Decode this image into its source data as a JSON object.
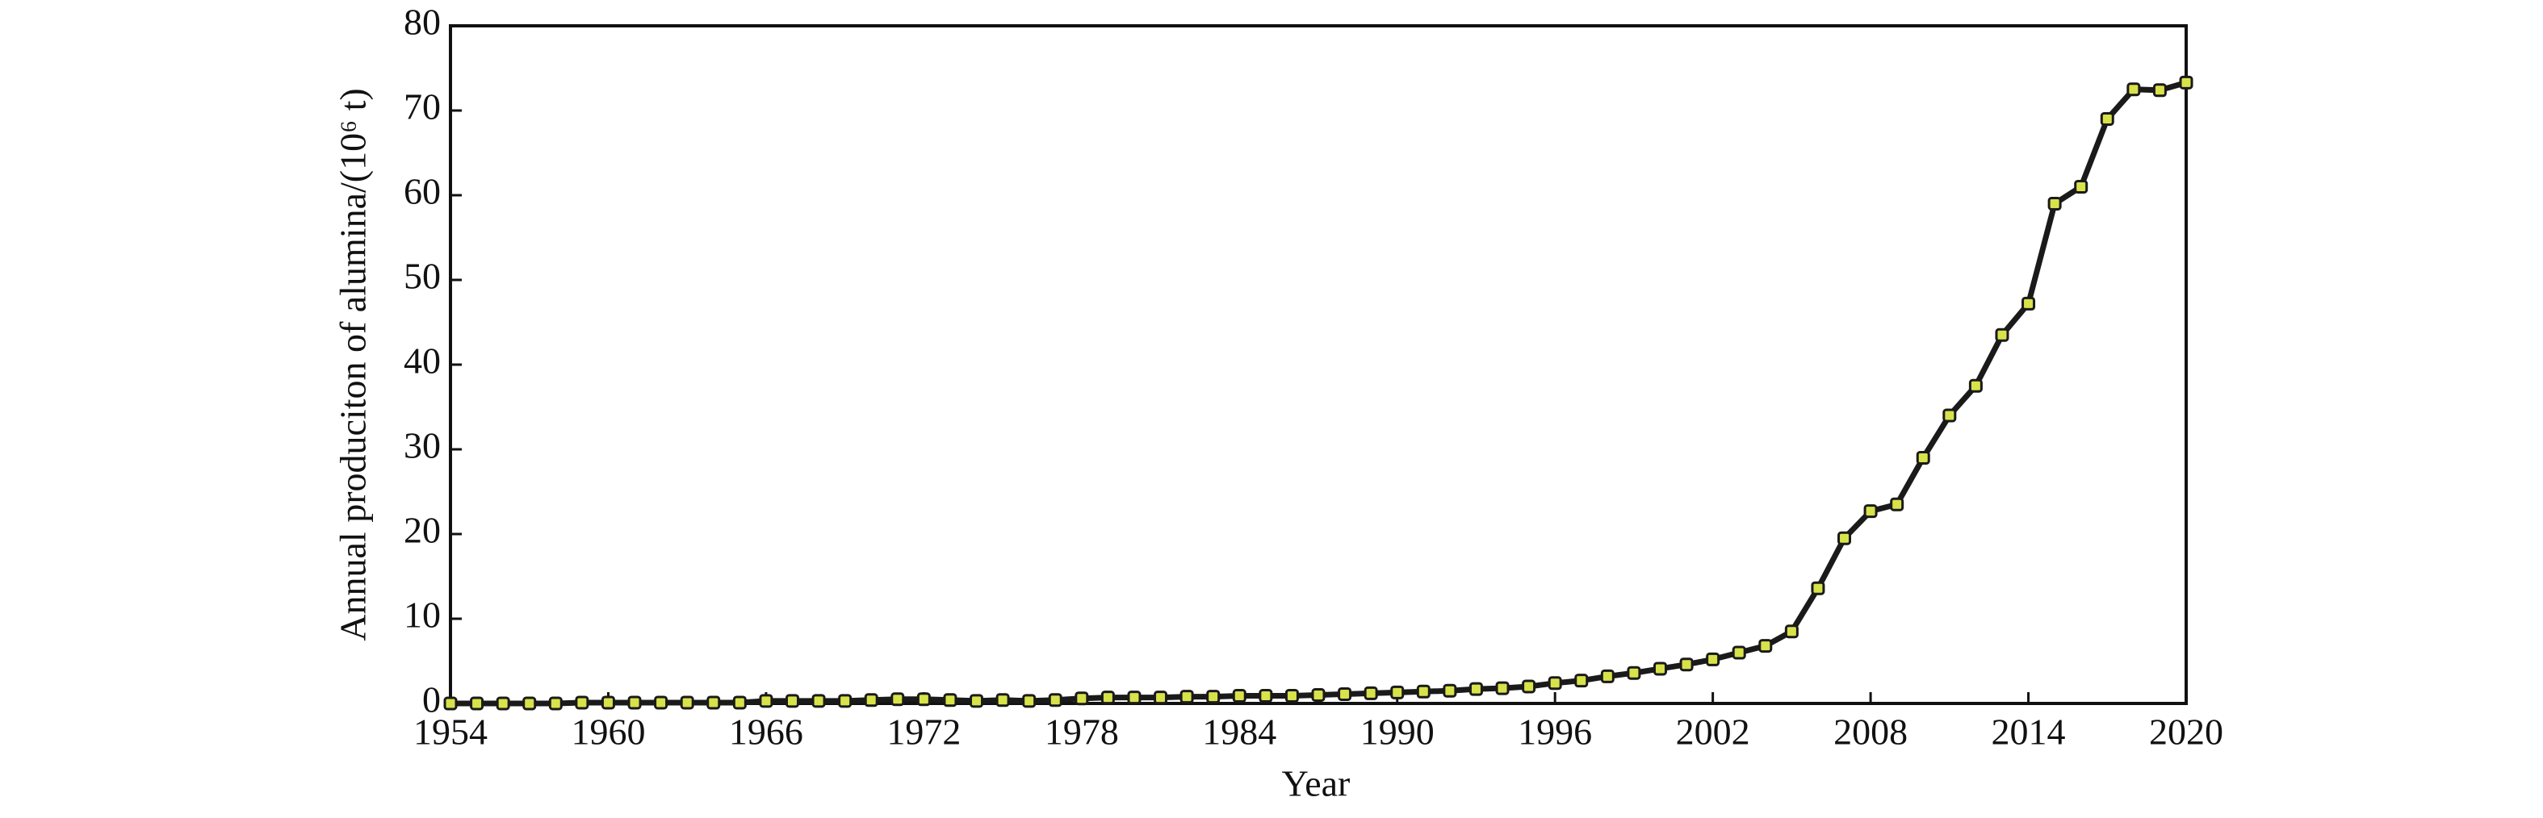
{
  "chart_data": {
    "type": "line",
    "xlabel": "Year",
    "ylabel": "Annual produciton of alumina/(10⁶ t)",
    "x": [
      1954,
      1955,
      1956,
      1957,
      1958,
      1959,
      1960,
      1961,
      1962,
      1963,
      1964,
      1965,
      1966,
      1967,
      1968,
      1969,
      1970,
      1971,
      1972,
      1973,
      1974,
      1975,
      1976,
      1977,
      1978,
      1979,
      1980,
      1981,
      1982,
      1983,
      1984,
      1985,
      1986,
      1987,
      1988,
      1989,
      1990,
      1991,
      1992,
      1993,
      1994,
      1995,
      1996,
      1997,
      1998,
      1999,
      2000,
      2001,
      2002,
      2003,
      2004,
      2005,
      2006,
      2007,
      2008,
      2009,
      2010,
      2011,
      2012,
      2013,
      2014,
      2015,
      2016,
      2017,
      2018,
      2019,
      2020
    ],
    "series": [
      {
        "color": "#1a1a1a",
        "marker_color": "#d8e24a",
        "values": [
          0,
          0,
          0,
          0,
          0,
          0.1,
          0.1,
          0.1,
          0.1,
          0.1,
          0.1,
          0.1,
          0.3,
          0.3,
          0.3,
          0.3,
          0.4,
          0.5,
          0.5,
          0.4,
          0.3,
          0.4,
          0.3,
          0.4,
          0.6,
          0.7,
          0.7,
          0.7,
          0.8,
          0.8,
          0.9,
          0.9,
          0.9,
          1.0,
          1.1,
          1.2,
          1.3,
          1.4,
          1.5,
          1.7,
          1.8,
          2.0,
          2.4,
          2.7,
          3.2,
          3.6,
          4.1,
          4.6,
          5.2,
          6.0,
          6.8,
          8.5,
          13.6,
          19.5,
          22.7,
          23.5,
          29.0,
          34.0,
          37.5,
          43.5,
          47.2,
          59.0,
          61.0,
          69.0,
          72.5,
          72.4,
          73.3
        ]
      }
    ],
    "xlim": [
      1954,
      2020
    ],
    "xticks": [
      1954,
      1960,
      1966,
      1972,
      1978,
      1984,
      1990,
      1996,
      2002,
      2008,
      2014,
      2020
    ],
    "ylim": [
      0,
      80
    ],
    "yticks": [
      0,
      10,
      20,
      30,
      40,
      50,
      60,
      70,
      80
    ]
  }
}
